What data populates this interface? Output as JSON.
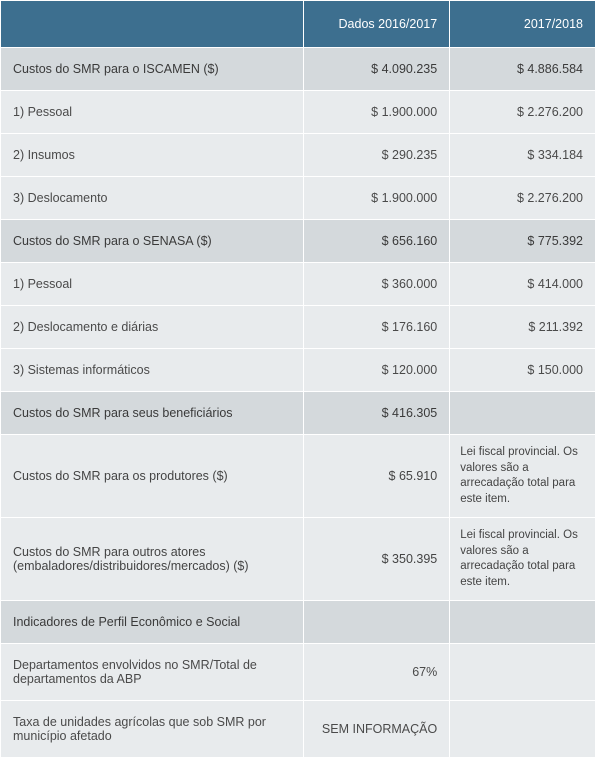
{
  "header": {
    "col1": "",
    "col2": "Dados 2016/2017",
    "col3": "2017/2018"
  },
  "rows": [
    {
      "type": "section",
      "label": "Custos do SMR para o ISCAMEN ($)",
      "v1": "$ 4.090.235",
      "v2": "$ 4.886.584"
    },
    {
      "type": "data",
      "label": "1) Pessoal",
      "v1": "$ 1.900.000",
      "v2": "$ 2.276.200"
    },
    {
      "type": "data",
      "label": "2) Insumos",
      "v1": "$ 290.235",
      "v2": "$ 334.184"
    },
    {
      "type": "data",
      "label": "3) Deslocamento",
      "v1": "$ 1.900.000",
      "v2": "$ 2.276.200"
    },
    {
      "type": "section",
      "label": "Custos do SMR para o SENASA ($)",
      "v1": "$ 656.160",
      "v2": "$ 775.392"
    },
    {
      "type": "data",
      "label": "1) Pessoal",
      "v1": "$ 360.000",
      "v2": "$ 414.000"
    },
    {
      "type": "data",
      "label": "2) Deslocamento e diárias",
      "v1": "$ 176.160",
      "v2": "$ 211.392"
    },
    {
      "type": "data",
      "label": "3) Sistemas informáticos",
      "v1": "$ 120.000",
      "v2": "$ 150.000"
    },
    {
      "type": "section",
      "label": "Custos do SMR para seus beneficiários",
      "v1": "$ 416.305",
      "v2": ""
    },
    {
      "type": "note",
      "label": "Custos do SMR para os produtores ($)",
      "v1": "$ 65.910",
      "v2": "Lei fiscal provincial. Os valores são a arrecadação total para este item."
    },
    {
      "type": "note",
      "label": "Custos do SMR para outros atores (embaladores/distribuidores/mercados) ($)",
      "v1": "$ 350.395",
      "v2": "Lei fiscal provincial. Os valores são a arrecadação total para este item."
    },
    {
      "type": "indicator",
      "label": "Indicadores de Perfil Econômico e Social",
      "v1": "",
      "v2": ""
    },
    {
      "type": "data",
      "label": "Departamentos envolvidos  no SMR/Total de departamentos da ABP",
      "v1": "67%",
      "v2": ""
    },
    {
      "type": "data",
      "label": "Taxa de unidades agrícolas que sob SMR por município afetado",
      "v1": "SEM INFORMAÇÃO",
      "v2": ""
    }
  ],
  "styling": {
    "header_bg": "#3d6f8f",
    "header_text": "#ffffff",
    "section_bg": "#d4d9dc",
    "data_bg": "#e8ebed",
    "text_color": "#444444",
    "border_color": "#ffffff",
    "font_size_body": 12.5,
    "font_size_note": 11.5
  }
}
